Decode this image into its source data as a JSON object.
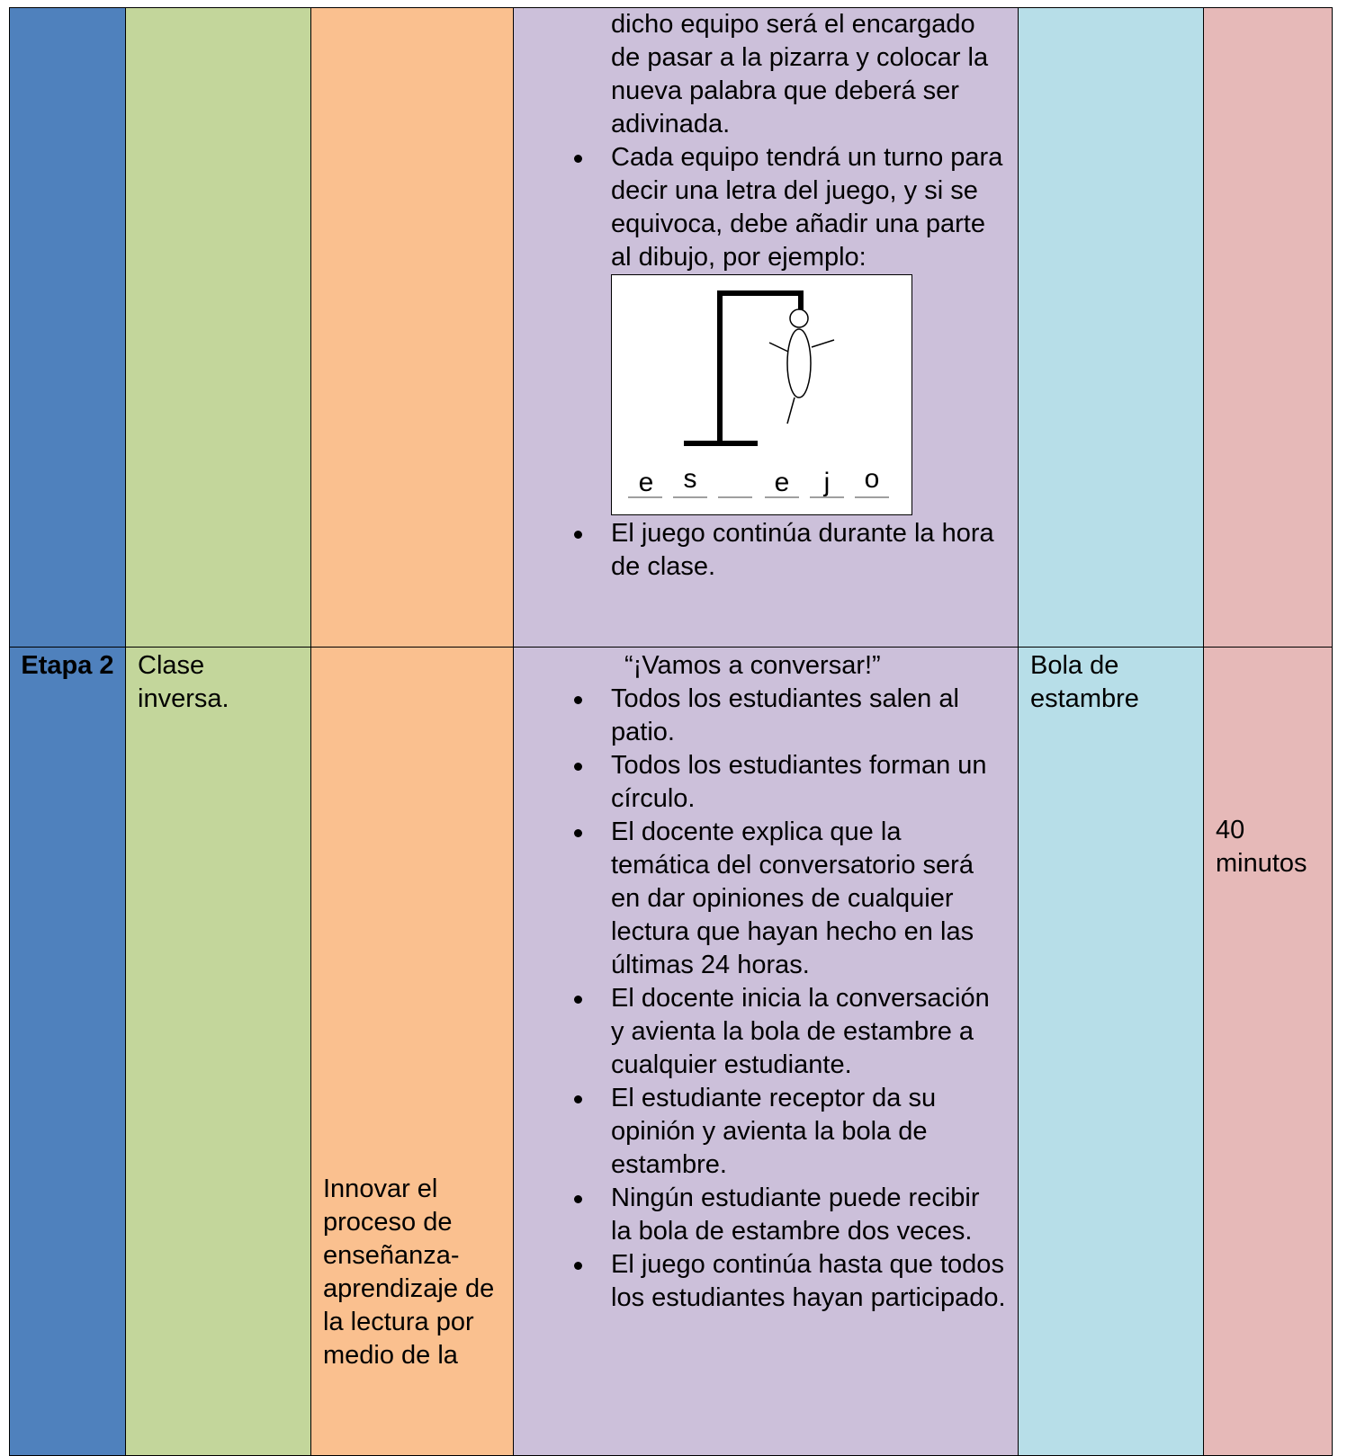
{
  "table": {
    "rows": [
      {
        "stage": null,
        "strategy": null,
        "objective": null,
        "activities": {
          "intro": "dicho equipo será el encargado de pasar a la pizarra y colocar la nueva palabra que deberá ser adivinada.",
          "items": [
            "Cada equipo tendrá un turno para decir una letra del juego, y si se equivoca, debe añadir una parte al dibujo, por ejemplo:",
            "El juego continúa durante la hora de clase."
          ],
          "image_letters": [
            "e",
            "s",
            "e",
            "j",
            "o"
          ]
        },
        "resources": null,
        "time": null
      },
      {
        "stage": "Etapa 2",
        "strategy": "Clase inversa.",
        "objective": "Innovar el proceso de enseñanza-aprendizaje de la lectura por medio de la",
        "activities": {
          "title": "“¡Vamos a conversar!”",
          "items": [
            "Todos los estudiantes salen al patio.",
            "Todos los estudiantes forman un círculo.",
            "El docente explica que la temática del conversatorio será en dar opiniones de cualquier lectura que hayan hecho en las últimas 24 horas.",
            "El docente inicia la conversación y avienta la bola de estambre a cualquier estudiante.",
            "El estudiante receptor da su opinión y avienta la bola de estambre.",
            "Ningún estudiante puede recibir la bola de estambre dos veces.",
            "El juego continúa hasta que todos los estudiantes hayan participado."
          ]
        },
        "resources": "Bola de estambre",
        "time": "40 minutos"
      }
    ]
  }
}
